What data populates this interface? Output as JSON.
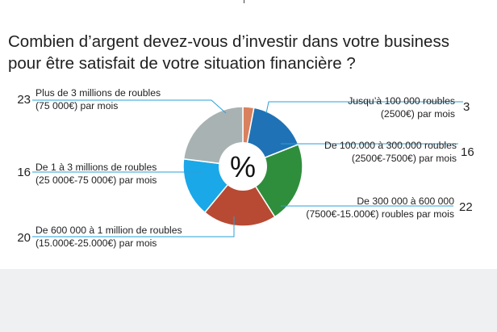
{
  "title": {
    "line1": "Combien d’argent devez-vous d’investir dans votre business",
    "line2": "pour être satisfait de votre situation financière ?"
  },
  "center_symbol": "%",
  "chart_data": {
    "type": "pie",
    "style": "donut",
    "title": "Combien d’argent devez-vous d’investir dans votre business pour être satisfait de votre situation financière ?",
    "slices": [
      {
        "label_line1": "Jusqu’à 100 000 roubles",
        "label_line2": "(2500€) par mois",
        "value": 3,
        "color": "#d9805e"
      },
      {
        "label_line1": "De 100.000 à 300.000 roubles",
        "label_line2": "(2500€-7500€)  par mois",
        "value": 16,
        "color": "#1f72b5"
      },
      {
        "label_line1": "De 300 000 à 600 000",
        "label_line2": "(7500€-15.000€) roubles par mois",
        "value": 22,
        "color": "#2e8e3c"
      },
      {
        "label_line1": "De 600 000 à 1 million de roubles",
        "label_line2": "(15.000€-25.000€) par mois",
        "value": 20,
        "color": "#b84a34"
      },
      {
        "label_line1": "De 1 à 3 millions de roubles",
        "label_line2": "(25 000€-75 000€) par mois",
        "value": 16,
        "color": "#1aa8e8"
      },
      {
        "label_line1": "Plus de 3 millions de roubles",
        "label_line2": "(75 000€) par mois",
        "value": 23,
        "color": "#a8b2b2"
      }
    ],
    "leader_color": "#2aa0d8"
  }
}
